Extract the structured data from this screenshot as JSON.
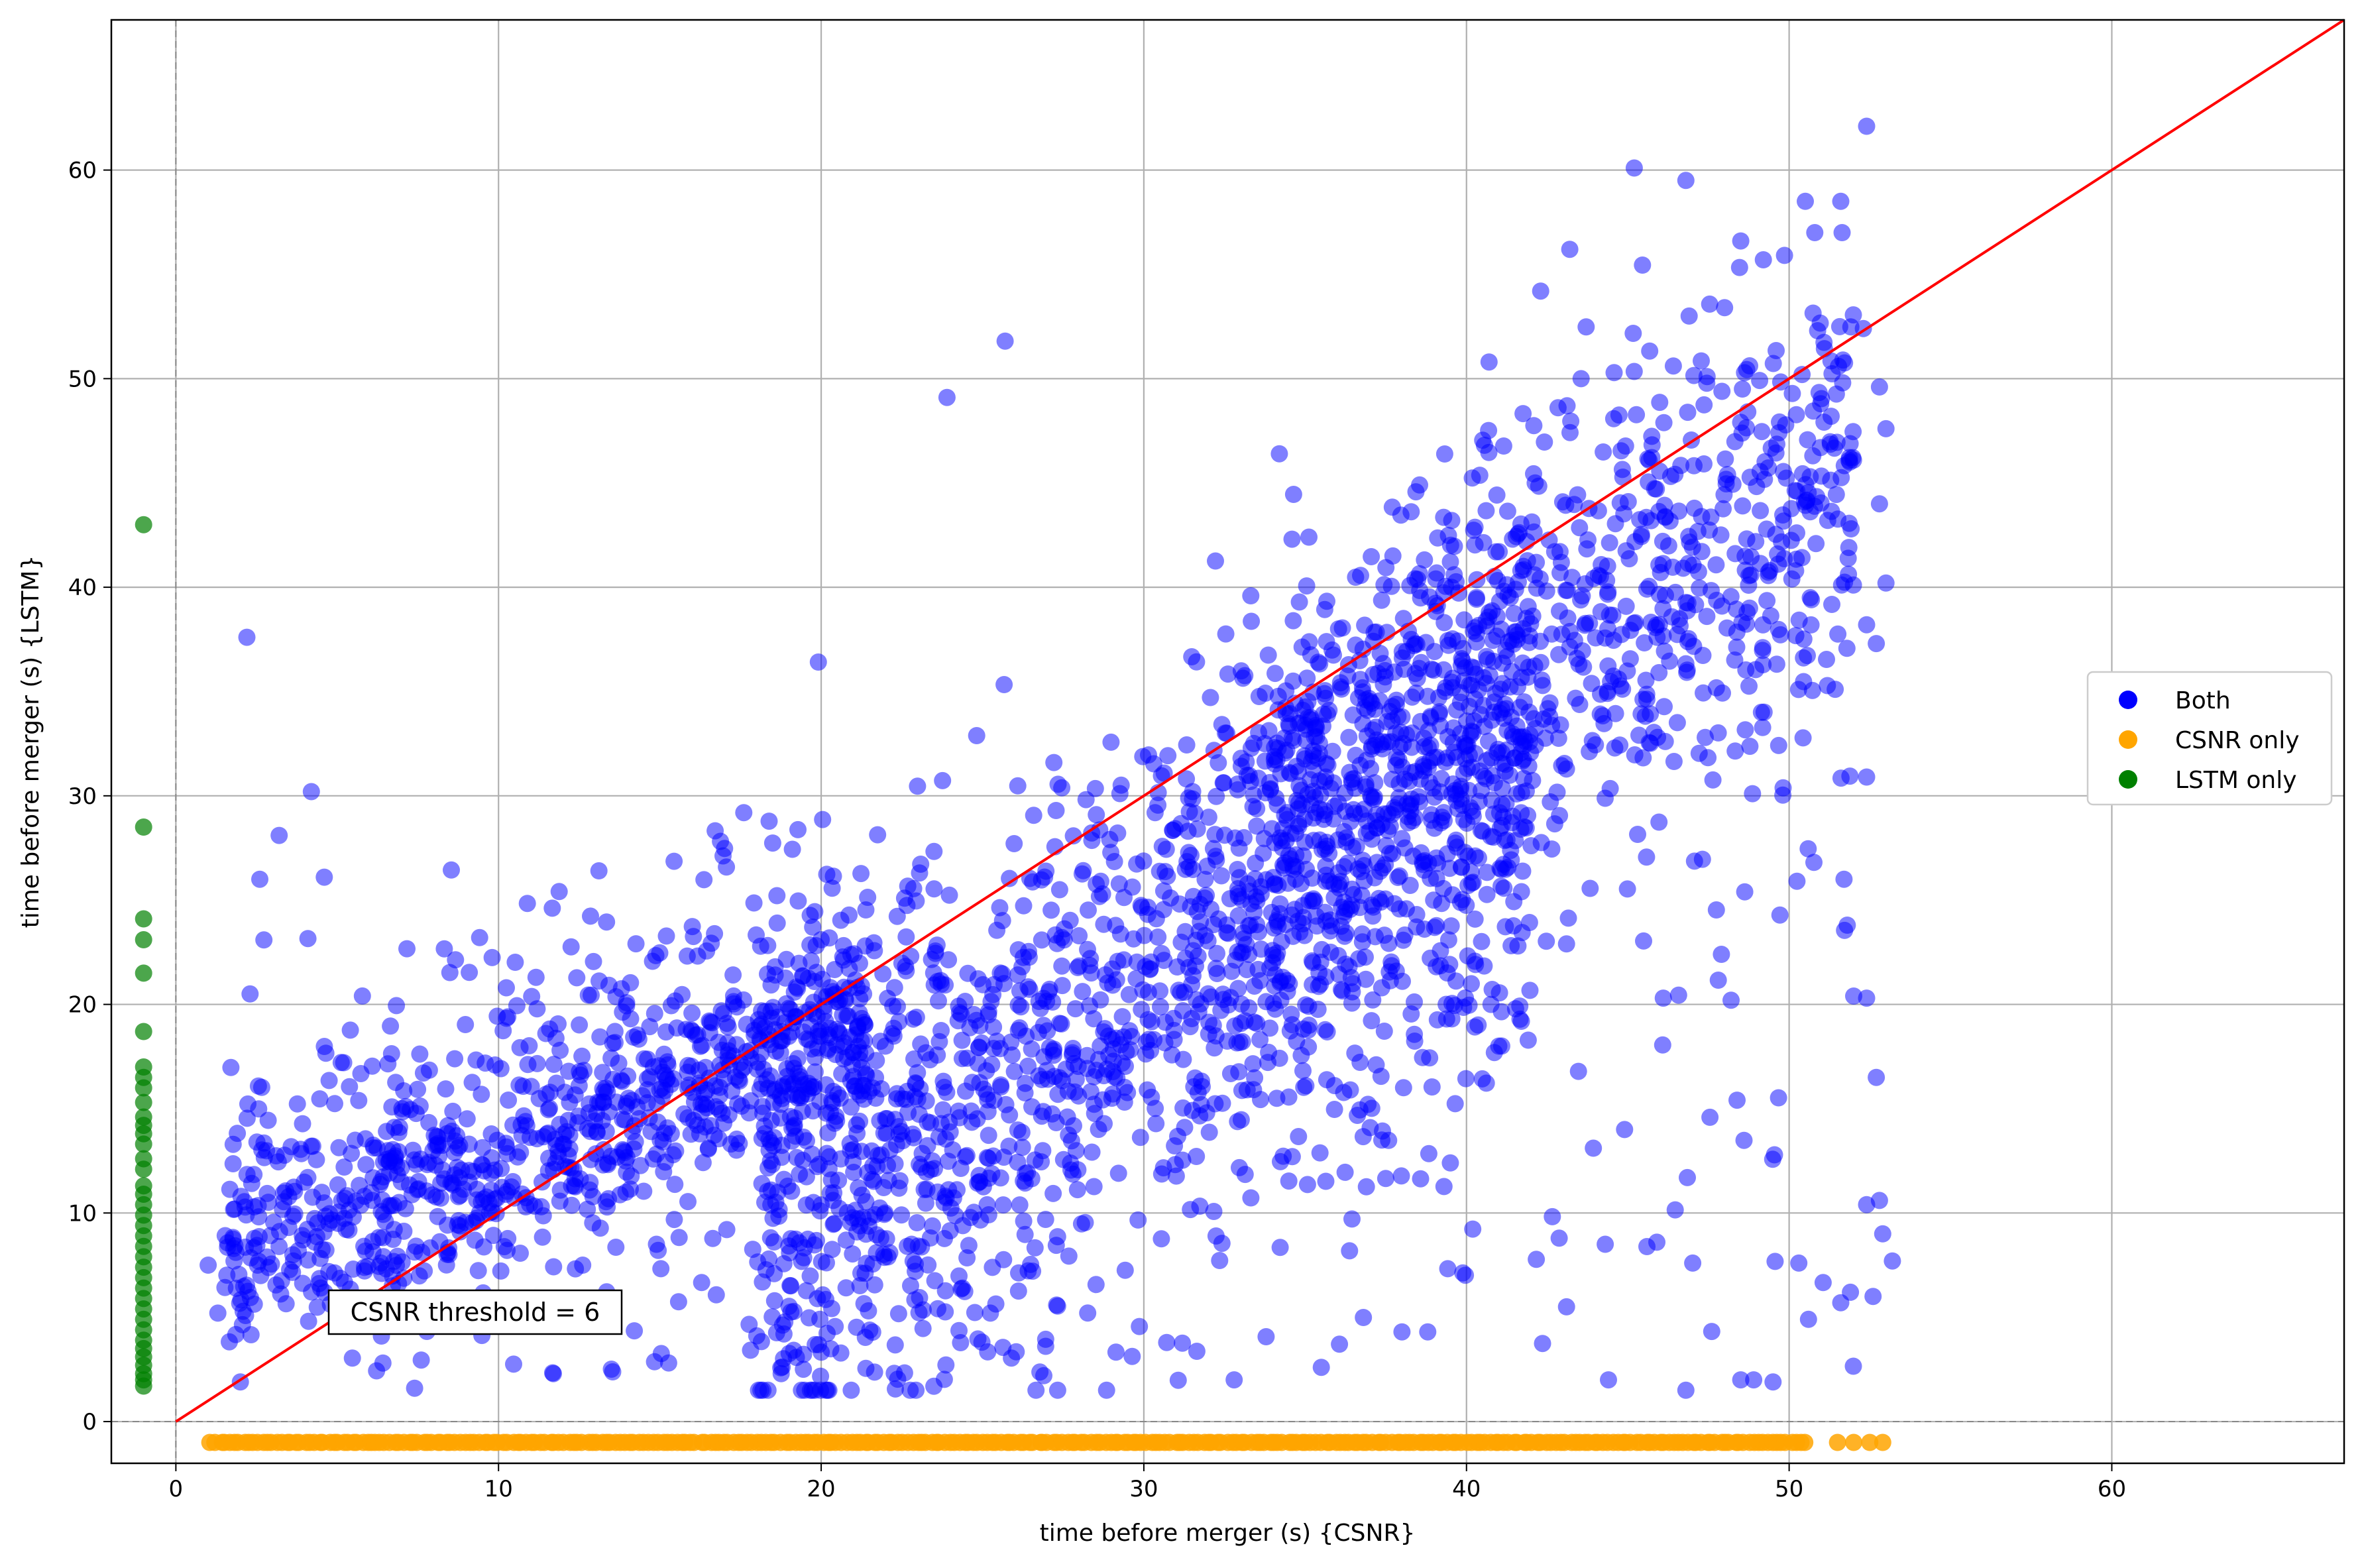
{
  "chart_data": {
    "type": "scatter",
    "title": "",
    "xlabel": "time before merger (s) {CSNR}",
    "ylabel": "time before merger (s) {LSTM}",
    "xlim": [
      -2,
      67.2
    ],
    "ylim": [
      -2,
      67.2
    ],
    "xticks": [
      0,
      10,
      20,
      30,
      40,
      50,
      60
    ],
    "yticks": [
      0,
      10,
      20,
      30,
      40,
      50,
      60
    ],
    "grid": true,
    "legend_position": "center-right",
    "reference_lines": {
      "identity_line": {
        "from": [
          0,
          0
        ],
        "to": [
          67.2,
          67.2
        ],
        "color": "#ff0000"
      },
      "dashed_zero_lines": {
        "x": 0,
        "y": 0,
        "color": "#888888"
      }
    },
    "annotation": {
      "text": "CSNR threshold = 6",
      "x": 9,
      "y": 5.4
    },
    "series": [
      {
        "name": "Both",
        "color": "#0000ff",
        "alpha": 0.5,
        "generated": {
          "count": 3400,
          "trend": "y≈x with large scatter",
          "x_range": [
            1,
            53.2
          ],
          "y_range": [
            1.5,
            62.1
          ]
        },
        "points": [
          [
            2.2,
            37.6
          ],
          [
            4.2,
            30.2
          ],
          [
            3.2,
            28.1
          ],
          [
            2.6,
            26.0
          ],
          [
            2.3,
            20.5
          ],
          [
            4.6,
            26.1
          ],
          [
            23.9,
            49.1
          ],
          [
            25.7,
            51.8
          ],
          [
            45.2,
            60.1
          ],
          [
            46.8,
            59.5
          ],
          [
            52.4,
            62.1
          ],
          [
            51.6,
            58.5
          ],
          [
            50.5,
            58.5
          ],
          [
            42.3,
            54.2
          ],
          [
            43.2,
            56.2
          ],
          [
            48.5,
            56.6
          ],
          [
            49.2,
            55.7
          ],
          [
            50.4,
            50.2
          ],
          [
            52.3,
            52.4
          ],
          [
            52.8,
            49.6
          ],
          [
            53.0,
            47.6
          ],
          [
            52.8,
            44.0
          ],
          [
            53.0,
            40.2
          ],
          [
            52.4,
            38.2
          ],
          [
            52.7,
            37.3
          ],
          [
            52.4,
            30.9
          ],
          [
            51.7,
            26.0
          ],
          [
            51.8,
            23.8
          ],
          [
            52.0,
            20.4
          ],
          [
            52.4,
            20.3
          ],
          [
            52.7,
            16.5
          ],
          [
            52.8,
            10.6
          ],
          [
            52.4,
            10.4
          ],
          [
            52.9,
            9.0
          ],
          [
            52.6,
            6.0
          ],
          [
            51.9,
            6.2
          ],
          [
            51.6,
            5.7
          ],
          [
            53.2,
            7.7
          ],
          [
            50.6,
            4.9
          ],
          [
            49.5,
            1.9
          ],
          [
            48.9,
            2.0
          ],
          [
            48.5,
            2.0
          ],
          [
            46.8,
            1.5
          ],
          [
            44.4,
            2.0
          ],
          [
            32.8,
            2.0
          ],
          [
            26.9,
            2.2
          ],
          [
            11.7,
            2.3
          ],
          [
            7.4,
            1.6
          ],
          [
            2.0,
            1.9
          ],
          [
            1.0,
            7.5
          ],
          [
            1.3,
            5.2
          ],
          [
            46.9,
            53.0
          ],
          [
            40.7,
            50.8
          ],
          [
            48.0,
            53.4
          ],
          [
            34.2,
            46.4
          ],
          [
            47.9,
            22.4
          ],
          [
            48.2,
            20.2
          ],
          [
            46.1,
            20.3
          ],
          [
            43.1,
            22.9
          ],
          [
            41.0,
            18.0
          ],
          [
            37.2,
            17.1
          ],
          [
            36.4,
            15.9
          ],
          [
            34.6,
            12.7
          ],
          [
            39.5,
            12.4
          ],
          [
            44.9,
            14.0
          ],
          [
            45.9,
            8.6
          ],
          [
            44.3,
            8.5
          ],
          [
            43.1,
            5.5
          ],
          [
            38.8,
            4.3
          ],
          [
            38.0,
            4.3
          ],
          [
            35.5,
            2.6
          ]
        ]
      },
      {
        "name": "CSNR only",
        "color": "#ffa500",
        "alpha": 0.85,
        "generated": {
          "count": 340,
          "y_value": -1,
          "x_range": [
            1.1,
            53.0
          ]
        },
        "points": [
          [
            51.5,
            -1
          ],
          [
            52.0,
            -1
          ],
          [
            52.5,
            -1
          ],
          [
            52.9,
            -1
          ]
        ]
      },
      {
        "name": "LSTM only",
        "color": "#008000",
        "alpha": 0.7,
        "x_value": -1,
        "points": [
          [
            -1,
            43.0
          ],
          [
            -1,
            28.5
          ],
          [
            -1,
            24.1
          ],
          [
            -1,
            23.1
          ],
          [
            -1,
            21.5
          ],
          [
            -1,
            18.7
          ],
          [
            -1,
            17.0
          ],
          [
            -1,
            16.5
          ],
          [
            -1,
            16.0
          ],
          [
            -1,
            15.3
          ],
          [
            -1,
            14.6
          ],
          [
            -1,
            14.2
          ],
          [
            -1,
            13.8
          ],
          [
            -1,
            13.3
          ],
          [
            -1,
            12.6
          ],
          [
            -1,
            12.1
          ],
          [
            -1,
            11.3
          ],
          [
            -1,
            10.9
          ],
          [
            -1,
            10.4
          ],
          [
            -1,
            9.9
          ],
          [
            -1,
            9.4
          ],
          [
            -1,
            8.9
          ],
          [
            -1,
            8.4
          ],
          [
            -1,
            7.9
          ],
          [
            -1,
            7.4
          ],
          [
            -1,
            6.9
          ],
          [
            -1,
            6.4
          ],
          [
            -1,
            5.9
          ],
          [
            -1,
            5.4
          ],
          [
            -1,
            4.9
          ],
          [
            -1,
            4.4
          ],
          [
            -1,
            3.9
          ],
          [
            -1,
            3.5
          ],
          [
            -1,
            3.1
          ],
          [
            -1,
            2.7
          ],
          [
            -1,
            2.3
          ],
          [
            -1,
            2.0
          ],
          [
            -1,
            1.7
          ]
        ]
      }
    ]
  }
}
